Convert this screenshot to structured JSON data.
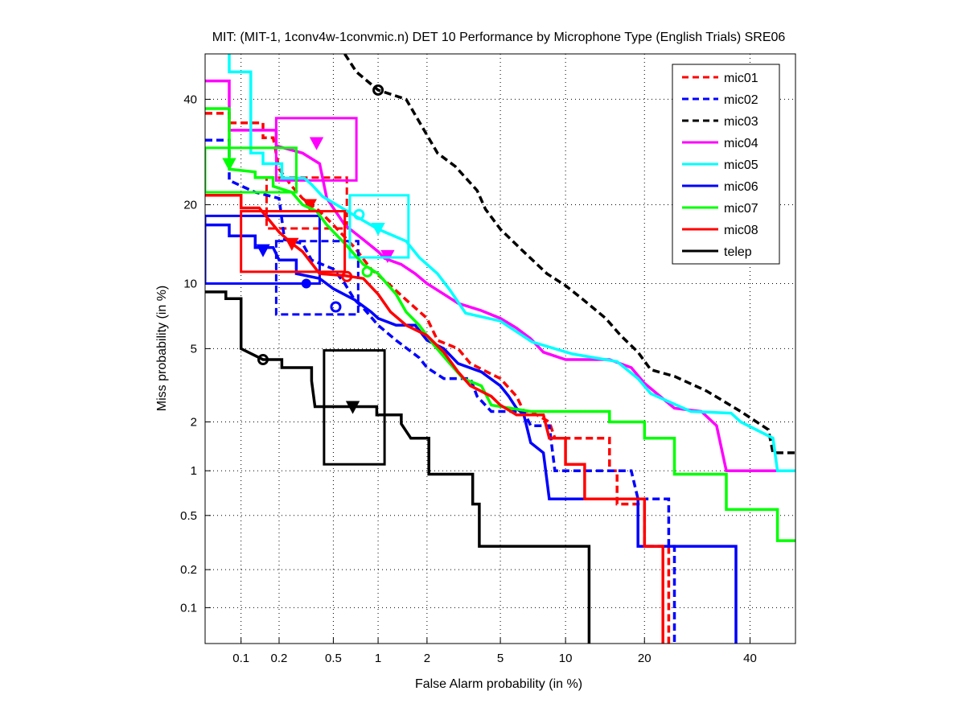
{
  "chart_data": {
    "type": "line",
    "subtype": "DET (normal deviate scale)",
    "title": "MIT: (MIT-1, 1conv4w-1convmic.n) DET 10 Performance by Microphone Type (English Trials) SRE06",
    "xlabel": "False Alarm probability (in %)",
    "ylabel": "Miss probability (in %)",
    "xlim": [
      0.05,
      50
    ],
    "ylim": [
      0.05,
      50
    ],
    "xticks": [
      "0.1",
      "0.2",
      "0.5",
      "1",
      "2",
      "5",
      "10",
      "20",
      "40"
    ],
    "yticks": [
      "0.1",
      "0.2",
      "0.5",
      "1",
      "2",
      "5",
      "10",
      "20",
      "40"
    ],
    "grid": true,
    "legend_position": "top-right",
    "series": [
      {
        "name": "mic01",
        "color": "#ff0000",
        "dashed": true,
        "points": [
          [
            0.05,
            37
          ],
          [
            0.08,
            37
          ],
          [
            0.08,
            35
          ],
          [
            0.15,
            35
          ],
          [
            0.15,
            32
          ],
          [
            0.18,
            32
          ],
          [
            0.2,
            26
          ],
          [
            0.25,
            23
          ],
          [
            0.3,
            21
          ],
          [
            0.4,
            19
          ],
          [
            0.5,
            17
          ],
          [
            0.7,
            14
          ],
          [
            0.9,
            11.5
          ],
          [
            1.2,
            9.8
          ],
          [
            1.5,
            8.5
          ],
          [
            2,
            7
          ],
          [
            2.3,
            5.5
          ],
          [
            3,
            5
          ],
          [
            3.5,
            4.2
          ],
          [
            5,
            3.5
          ],
          [
            6,
            2.8
          ],
          [
            6.5,
            2.3
          ],
          [
            7,
            2.3
          ],
          [
            8.5,
            2.0
          ],
          [
            9,
            1.6
          ],
          [
            15,
            1.6
          ],
          [
            15,
            1.0
          ],
          [
            16,
            1.0
          ],
          [
            16,
            0.6
          ],
          [
            20,
            0.6
          ],
          [
            20,
            0.3
          ],
          [
            24,
            0.3
          ],
          [
            24,
            0.05
          ]
        ],
        "markers": [
          {
            "type": "triangle",
            "fa": 0.34,
            "miss": 20
          }
        ],
        "box": [
          0.16,
          0.62,
          16.5,
          24.5
        ]
      },
      {
        "name": "mic02",
        "color": "#0000ff",
        "dashed": true,
        "points": [
          [
            0.05,
            31.5
          ],
          [
            0.08,
            31.5
          ],
          [
            0.08,
            24
          ],
          [
            0.13,
            22
          ],
          [
            0.2,
            21
          ],
          [
            0.22,
            15
          ],
          [
            0.3,
            14.5
          ],
          [
            0.35,
            12.5
          ],
          [
            0.5,
            11.5
          ],
          [
            0.6,
            10
          ],
          [
            0.7,
            8.5
          ],
          [
            0.8,
            7.8
          ],
          [
            1.0,
            6.5
          ],
          [
            1.3,
            5.5
          ],
          [
            1.8,
            4.5
          ],
          [
            2,
            4
          ],
          [
            2.5,
            3.5
          ],
          [
            3.5,
            3.5
          ],
          [
            3.8,
            2.8
          ],
          [
            4.5,
            2.3
          ],
          [
            6.5,
            2.3
          ],
          [
            7,
            1.9
          ],
          [
            8.5,
            1.9
          ],
          [
            9,
            1.0
          ],
          [
            18,
            1.0
          ],
          [
            19,
            0.65
          ],
          [
            24,
            0.65
          ],
          [
            24,
            0.3
          ],
          [
            25,
            0.3
          ],
          [
            25,
            0.05
          ]
        ],
        "markers": [
          {
            "type": "circle",
            "fa": 0.52,
            "miss": 7.9
          }
        ],
        "box": [
          0.19,
          0.74,
          7.3,
          14.8
        ]
      },
      {
        "name": "mic03",
        "color": "#000000",
        "dashed": true,
        "points": [
          [
            0.6,
            50
          ],
          [
            0.72,
            46
          ],
          [
            1.0,
            42
          ],
          [
            1.5,
            40
          ],
          [
            2.3,
            29
          ],
          [
            2.9,
            26.5
          ],
          [
            3.8,
            22.3
          ],
          [
            4.2,
            19.3
          ],
          [
            5,
            16.4
          ],
          [
            6.3,
            13.8
          ],
          [
            8.3,
            11
          ],
          [
            10,
            9.8
          ],
          [
            11.7,
            8.6
          ],
          [
            14.5,
            7
          ],
          [
            16.5,
            5.8
          ],
          [
            19,
            4.8
          ],
          [
            21,
            3.9
          ],
          [
            25,
            3.6
          ],
          [
            31,
            3.0
          ],
          [
            38,
            2.3
          ],
          [
            44,
            1.8
          ],
          [
            45,
            1.3
          ],
          [
            50,
            1.3
          ]
        ],
        "markers": [
          {
            "type": "circle",
            "fa": 1.0,
            "miss": 42
          }
        ]
      },
      {
        "name": "mic04",
        "color": "#ff00ff",
        "dashed": false,
        "points": [
          [
            0.05,
            44
          ],
          [
            0.08,
            44
          ],
          [
            0.08,
            33.5
          ],
          [
            0.19,
            33.5
          ],
          [
            0.19,
            30.4
          ],
          [
            0.3,
            29
          ],
          [
            0.4,
            27
          ],
          [
            0.45,
            21
          ],
          [
            0.5,
            19.5
          ],
          [
            0.6,
            17
          ],
          [
            0.8,
            15
          ],
          [
            1.0,
            13.5
          ],
          [
            1.1,
            12.7
          ],
          [
            1.4,
            12
          ],
          [
            1.7,
            11
          ],
          [
            2.0,
            10
          ],
          [
            2.5,
            9
          ],
          [
            3,
            8.2
          ],
          [
            4,
            7.6
          ],
          [
            5,
            7
          ],
          [
            6,
            6.3
          ],
          [
            7,
            5.6
          ],
          [
            8,
            4.8
          ],
          [
            10,
            4.4
          ],
          [
            15,
            4.4
          ],
          [
            18,
            4
          ],
          [
            20,
            3.3
          ],
          [
            25,
            2.4
          ],
          [
            30,
            2.3
          ],
          [
            33,
            1.9
          ],
          [
            35,
            1.0
          ],
          [
            50,
            1.0
          ]
        ],
        "markers": [
          {
            "type": "triangle",
            "fa": 0.38,
            "miss": 31
          },
          {
            "type": "triangle",
            "fa": 1.15,
            "miss": 13
          }
        ],
        "box": [
          0.19,
          0.72,
          24,
          36
        ]
      },
      {
        "name": "mic05",
        "color": "#00ffff",
        "dashed": false,
        "points": [
          [
            0.08,
            50
          ],
          [
            0.08,
            46
          ],
          [
            0.12,
            46
          ],
          [
            0.12,
            29
          ],
          [
            0.15,
            29
          ],
          [
            0.15,
            27
          ],
          [
            0.21,
            27
          ],
          [
            0.21,
            24.4
          ],
          [
            0.31,
            24.4
          ],
          [
            0.35,
            23.3
          ],
          [
            0.42,
            21.3
          ],
          [
            0.72,
            18.2
          ],
          [
            1.0,
            16.4
          ],
          [
            1.5,
            14.8
          ],
          [
            1.8,
            12.8
          ],
          [
            2.3,
            11
          ],
          [
            2.7,
            9.4
          ],
          [
            3.3,
            7.4
          ],
          [
            5,
            6.8
          ],
          [
            7.1,
            5.4
          ],
          [
            10.7,
            4.7
          ],
          [
            16,
            4.3
          ],
          [
            19,
            3.5
          ],
          [
            21,
            2.9
          ],
          [
            28,
            2.3
          ],
          [
            36,
            2.25
          ],
          [
            38,
            2.0
          ],
          [
            45,
            1.6
          ],
          [
            46,
            1.0
          ],
          [
            50,
            1.0
          ]
        ],
        "markers": [
          {
            "type": "circle",
            "fa": 0.75,
            "miss": 18.5
          },
          {
            "type": "triangle",
            "fa": 1.0,
            "miss": 16.5
          }
        ],
        "box": [
          0.65,
          1.55,
          12.8,
          21.5
        ]
      },
      {
        "name": "mic06",
        "color": "#0000ff",
        "dashed": false,
        "points": [
          [
            0.05,
            17
          ],
          [
            0.08,
            17
          ],
          [
            0.08,
            15.5
          ],
          [
            0.13,
            15.5
          ],
          [
            0.13,
            14
          ],
          [
            0.18,
            14
          ],
          [
            0.2,
            12.5
          ],
          [
            0.27,
            12.5
          ],
          [
            0.27,
            11
          ],
          [
            0.4,
            10.5
          ],
          [
            0.5,
            9.5
          ],
          [
            0.7,
            8.5
          ],
          [
            0.9,
            7.5
          ],
          [
            1.0,
            7
          ],
          [
            1.3,
            6.5
          ],
          [
            1.7,
            6.5
          ],
          [
            2,
            5.5
          ],
          [
            2.5,
            5
          ],
          [
            3,
            4.2
          ],
          [
            4,
            3.8
          ],
          [
            5,
            3.2
          ],
          [
            5.5,
            2.8
          ],
          [
            6,
            2.4
          ],
          [
            6.5,
            2.2
          ],
          [
            7,
            1.5
          ],
          [
            8,
            1.3
          ],
          [
            8.5,
            0.65
          ],
          [
            19,
            0.65
          ],
          [
            19,
            0.3
          ],
          [
            37,
            0.3
          ],
          [
            37,
            0.05
          ]
        ],
        "markers": [
          {
            "type": "triangle",
            "fa": 0.15,
            "miss": 13.7
          },
          {
            "type": "dot",
            "fa": 0.32,
            "miss": 10
          }
        ],
        "box": [
          0.05,
          0.4,
          10,
          18.3
        ]
      },
      {
        "name": "mic07",
        "color": "#00ff00",
        "dashed": false,
        "points": [
          [
            0.05,
            38
          ],
          [
            0.08,
            38
          ],
          [
            0.08,
            26
          ],
          [
            0.13,
            25.5
          ],
          [
            0.13,
            24.5
          ],
          [
            0.18,
            24.5
          ],
          [
            0.18,
            23
          ],
          [
            0.25,
            22
          ],
          [
            0.3,
            20
          ],
          [
            0.38,
            19
          ],
          [
            0.45,
            17
          ],
          [
            0.6,
            14.5
          ],
          [
            0.8,
            12
          ],
          [
            1.0,
            11
          ],
          [
            1.3,
            9
          ],
          [
            1.5,
            7.5
          ],
          [
            1.8,
            6.5
          ],
          [
            2.2,
            5.2
          ],
          [
            2.7,
            4.2
          ],
          [
            3.2,
            3.5
          ],
          [
            4,
            3.2
          ],
          [
            4.5,
            2.5
          ],
          [
            7,
            2.3
          ],
          [
            15,
            2.3
          ],
          [
            15,
            2.0
          ],
          [
            20,
            2.0
          ],
          [
            20,
            1.6
          ],
          [
            25,
            1.6
          ],
          [
            25,
            0.95
          ],
          [
            35,
            0.95
          ],
          [
            35,
            0.55
          ],
          [
            46,
            0.55
          ],
          [
            46,
            0.33
          ],
          [
            50,
            0.33
          ]
        ],
        "markers": [
          {
            "type": "triangle",
            "fa": 0.08,
            "miss": 27
          },
          {
            "type": "circle",
            "fa": 0.85,
            "miss": 11.2
          }
        ],
        "box": [
          0.05,
          0.27,
          22,
          30
        ]
      },
      {
        "name": "mic08",
        "color": "#ff0000",
        "dashed": false,
        "points": [
          [
            0.05,
            21.5
          ],
          [
            0.1,
            21.5
          ],
          [
            0.1,
            19.5
          ],
          [
            0.14,
            19.5
          ],
          [
            0.2,
            16
          ],
          [
            0.25,
            14.5
          ],
          [
            0.3,
            13.5
          ],
          [
            0.4,
            11
          ],
          [
            0.6,
            10.8
          ],
          [
            0.8,
            10.5
          ],
          [
            1.0,
            9
          ],
          [
            1.2,
            7.5
          ],
          [
            1.5,
            6.5
          ],
          [
            2,
            5.8
          ],
          [
            2.5,
            4.8
          ],
          [
            3,
            3.8
          ],
          [
            3.5,
            3.2
          ],
          [
            4.5,
            2.8
          ],
          [
            5,
            2.5
          ],
          [
            6,
            2.2
          ],
          [
            8,
            2.2
          ],
          [
            8.5,
            1.6
          ],
          [
            10,
            1.6
          ],
          [
            10,
            1.1
          ],
          [
            12,
            1.1
          ],
          [
            12,
            0.65
          ],
          [
            20,
            0.65
          ],
          [
            20,
            0.3
          ],
          [
            23,
            0.3
          ],
          [
            23,
            0.05
          ]
        ],
        "markers": [
          {
            "type": "triangle",
            "fa": 0.25,
            "miss": 14.5
          },
          {
            "type": "circle",
            "fa": 0.62,
            "miss": 10.7
          }
        ],
        "box": [
          0.1,
          0.6,
          11.2,
          19
        ]
      },
      {
        "name": "telep",
        "color": "#000000",
        "dashed": false,
        "points": [
          [
            0.05,
            9.2
          ],
          [
            0.075,
            9.2
          ],
          [
            0.075,
            8.6
          ],
          [
            0.1,
            8.6
          ],
          [
            0.1,
            5
          ],
          [
            0.15,
            4.4
          ],
          [
            0.21,
            4.4
          ],
          [
            0.21,
            4.0
          ],
          [
            0.35,
            4.0
          ],
          [
            0.35,
            3.4
          ],
          [
            0.37,
            2.45
          ],
          [
            0.98,
            2.45
          ],
          [
            0.98,
            2.2
          ],
          [
            1.4,
            2.2
          ],
          [
            1.4,
            1.95
          ],
          [
            1.6,
            1.6
          ],
          [
            2.05,
            1.6
          ],
          [
            2.05,
            0.95
          ],
          [
            3.6,
            0.95
          ],
          [
            3.6,
            0.6
          ],
          [
            3.9,
            0.6
          ],
          [
            3.9,
            0.3
          ],
          [
            12.5,
            0.3
          ],
          [
            12.5,
            0.05
          ]
        ],
        "markers": [
          {
            "type": "circle",
            "fa": 0.15,
            "miss": 4.4
          },
          {
            "type": "triangle",
            "fa": 0.68,
            "miss": 2.45
          }
        ],
        "box": [
          0.43,
          1.1,
          1.1,
          4.9
        ]
      }
    ]
  }
}
